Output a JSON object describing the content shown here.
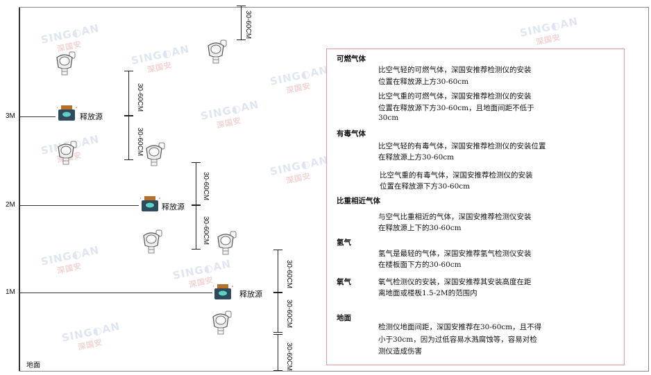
{
  "levels": {
    "m3": "3M",
    "m2": "2M",
    "m1": "1M",
    "ground": "地面"
  },
  "source_label": "释放源",
  "dimension_label": "30-60CM",
  "watermark": "SINGOAN 深国安",
  "colors": {
    "box_border": "#e89a9a",
    "source": "#2f4a5a",
    "watermark": "#dfe6f2"
  },
  "notes": {
    "combustible": {
      "title": "可燃气体",
      "lighter": [
        "比空气轻的可燃气体，深国安推荐检测仪的安装",
        "位置在释放源上方30-60cm"
      ],
      "heavier": [
        "比空气重的可燃气体，深国安推荐检测仪的安装",
        "位置在释放源下方30-60cm，且地面间距不低于",
        "30cm"
      ]
    },
    "toxic": {
      "title": "有毒气体",
      "lighter": [
        "比空气轻的有毒气体，深国安推荐检测仪的安装位置",
        "在释放源上方30-60cm"
      ],
      "heavier": [
        "比空气重的有毒气体，深国安推荐检测仪的安装",
        "位置在释放源下方30-60cm"
      ]
    },
    "similar": {
      "title": "比重相近气体",
      "body": [
        "与空气比重相近的气体，深国安推荐检测仪安装",
        "在释放源上下的30-60cm"
      ]
    },
    "hydrogen": {
      "title": "氢气",
      "body": [
        "氢气是最轻的气体，深国安推荐氢气检测仪安装",
        "在楼板面下方的30-60cm"
      ]
    },
    "oxygen": {
      "title": "氧气",
      "body": [
        "氧气检测仪的安装，深国安推荐其安装高度在距",
        "离地面或楼板1.5-2M的范围内"
      ]
    },
    "ground": {
      "title": "地面",
      "body": [
        "检测仪地面间距，深国安推荐在30-60cm，且不得",
        "小于30cm，因为过低容易水溅腐蚀等，容易对检",
        "测仪造成伤害"
      ]
    }
  }
}
